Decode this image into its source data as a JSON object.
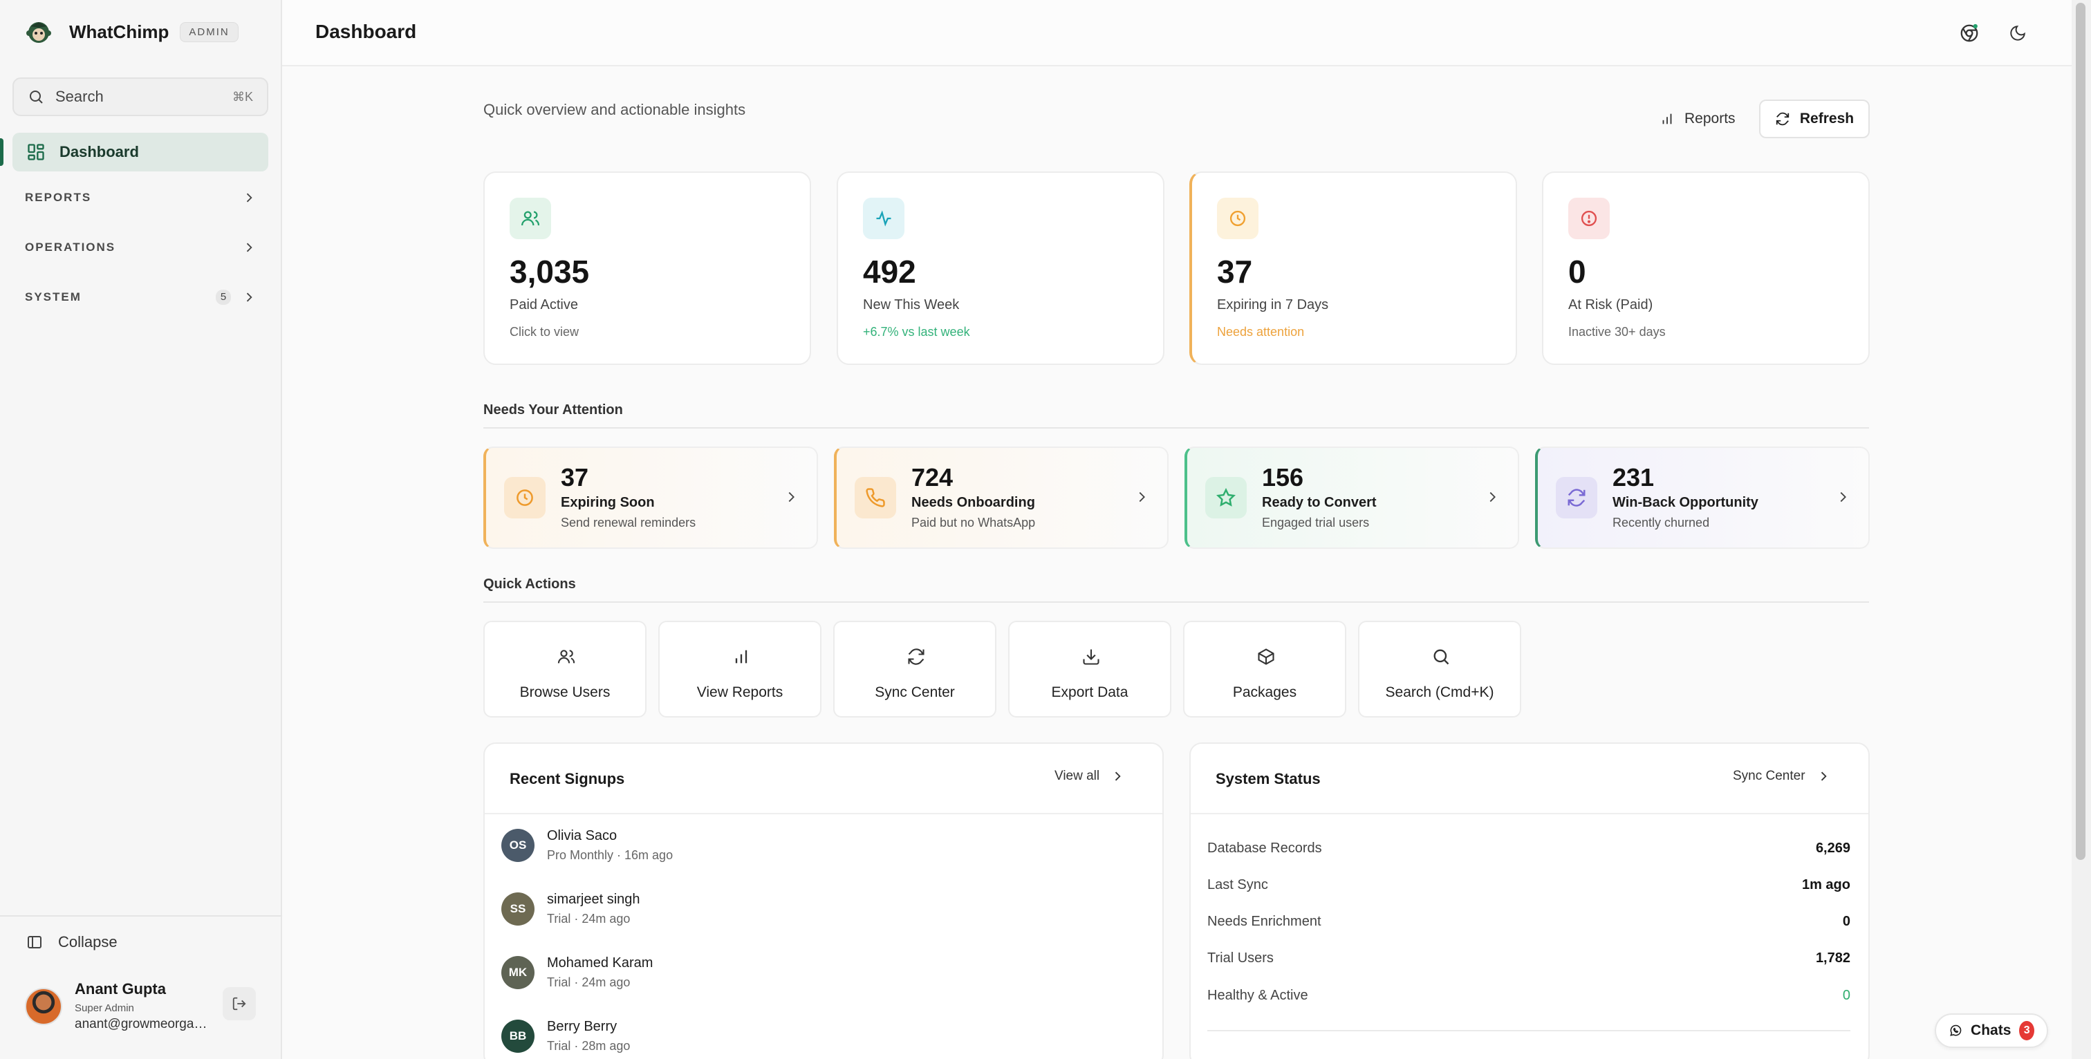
{
  "brand": {
    "name": "WhatChimp",
    "badge": "ADMIN"
  },
  "sidebar": {
    "search_label": "Search",
    "search_shortcut": "⌘K",
    "active_item": "Dashboard",
    "groups": [
      {
        "label": "REPORTS",
        "count": ""
      },
      {
        "label": "OPERATIONS",
        "count": ""
      },
      {
        "label": "SYSTEM",
        "count": "5"
      }
    ],
    "collapse_label": "Collapse",
    "user": {
      "name": "Anant Gupta",
      "role": "Super Admin",
      "email": "anant@growmeorgani..."
    }
  },
  "header": {
    "title": "Dashboard"
  },
  "main": {
    "subtitle": "Quick overview and actionable insights",
    "reports_label": "Reports",
    "refresh_label": "Refresh",
    "stats": [
      {
        "value": "3,035",
        "label": "Paid Active",
        "note": "Click to view",
        "icon": "users-icon",
        "accent": "#22a06b"
      },
      {
        "value": "492",
        "label": "New This Week",
        "note": "+6.7% vs last week",
        "icon": "activity-icon",
        "accent": "#1aa3b8",
        "note_color": "#33b27a"
      },
      {
        "value": "37",
        "label": "Expiring in 7 Days",
        "note": "Needs attention",
        "icon": "clock-icon",
        "accent": "#f0a030",
        "note_color": "#eda23c"
      },
      {
        "value": "0",
        "label": "At Risk (Paid)",
        "note": "Inactive 30+ days",
        "icon": "alert-circle-icon",
        "accent": "#e05050"
      }
    ],
    "attention_title": "Needs Your Attention",
    "attention": [
      {
        "value": "37",
        "title": "Expiring Soon",
        "desc": "Send renewal reminders",
        "icon": "clock-icon"
      },
      {
        "value": "724",
        "title": "Needs Onboarding",
        "desc": "Paid but no WhatsApp",
        "icon": "phone-icon"
      },
      {
        "value": "156",
        "title": "Ready to Convert",
        "desc": "Engaged trial users",
        "icon": "star-icon"
      },
      {
        "value": "231",
        "title": "Win-Back Opportunity",
        "desc": "Recently churned",
        "icon": "refresh-icon"
      }
    ],
    "quick_actions_title": "Quick Actions",
    "quick_actions": [
      {
        "label": "Browse Users",
        "icon": "users-icon"
      },
      {
        "label": "View Reports",
        "icon": "bar-chart-icon"
      },
      {
        "label": "Sync Center",
        "icon": "refresh-icon"
      },
      {
        "label": "Export Data",
        "icon": "download-icon"
      },
      {
        "label": "Packages",
        "icon": "package-icon"
      },
      {
        "label": "Search (Cmd+K)",
        "icon": "search-icon"
      }
    ],
    "recent_signups": {
      "title": "Recent Signups",
      "link": "View all",
      "rows": [
        {
          "initials": "OS",
          "name": "Olivia Saco",
          "meta": "Pro Monthly · 16m ago",
          "color": "#4b5a6a"
        },
        {
          "initials": "SS",
          "name": "simarjeet singh",
          "meta": "Trial · 24m ago",
          "color": "#6e6a52"
        },
        {
          "initials": "MK",
          "name": "Mohamed Karam",
          "meta": "Trial · 24m ago",
          "color": "#5e6354"
        },
        {
          "initials": "BB",
          "name": "Berry Berry",
          "meta": "Trial · 28m ago",
          "color": "#234a3c"
        }
      ]
    },
    "system_status": {
      "title": "System Status",
      "link": "Sync Center",
      "rows": [
        {
          "key": "Database Records",
          "value": "6,269"
        },
        {
          "key": "Last Sync",
          "value": "1m ago"
        },
        {
          "key": "Needs Enrichment",
          "value": "0"
        },
        {
          "key": "Trial Users",
          "value": "1,782"
        },
        {
          "key": "Healthy & Active",
          "value": "0"
        }
      ]
    }
  },
  "chats": {
    "label": "Chats",
    "count": "3"
  }
}
